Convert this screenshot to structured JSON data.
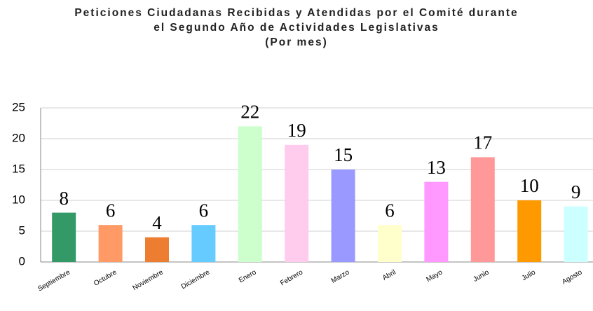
{
  "chart_data": {
    "type": "bar",
    "title": "Peticiones Ciudadanas Recibidas y Atendidas por el Comité durante el Segundo Año de Actividades Legislativas",
    "subtitle": "(Por mes)",
    "categories": [
      "Septiembre",
      "Octubre",
      "Noviembre",
      "Diciembre",
      "Enero",
      "Febrero",
      "Marzo",
      "Abril",
      "Mayo",
      "Junio",
      "Julio",
      "Agosto"
    ],
    "values": [
      8,
      6,
      4,
      6,
      22,
      19,
      15,
      6,
      13,
      17,
      10,
      9
    ],
    "colors": [
      "#339966",
      "#ff9966",
      "#ed7d31",
      "#66ccff",
      "#ccffcc",
      "#ffccee",
      "#9999ff",
      "#ffffcc",
      "#ff99ff",
      "#ff9999",
      "#ff9900",
      "#ccffff"
    ],
    "ylim": [
      0,
      25
    ],
    "yticks": [
      0,
      5,
      10,
      15,
      20,
      25
    ],
    "grid": true
  }
}
